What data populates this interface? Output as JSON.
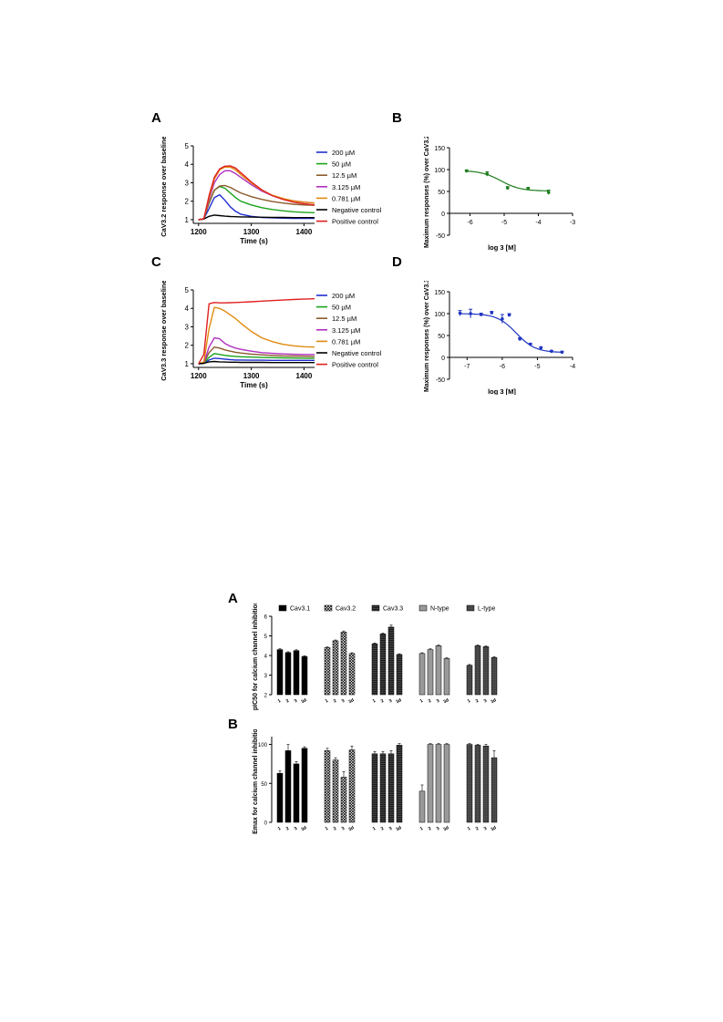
{
  "top": {
    "panel_labels": {
      "A": "A",
      "B": "B",
      "C": "C",
      "D": "D"
    },
    "legend": [
      {
        "label": "200 µM",
        "color": "#1f2fd0"
      },
      {
        "label": "50 µM",
        "color": "#1aa31a"
      },
      {
        "label": "12.5 µM",
        "color": "#8b5a2b"
      },
      {
        "label": "3.125 µM",
        "color": "#b030c0"
      },
      {
        "label": "0.781 µM",
        "color": "#e08a10"
      },
      {
        "label": "Negative control",
        "color": "#000000"
      },
      {
        "label": "Positive control",
        "color": "#e02020"
      }
    ]
  },
  "chart_data": [
    {
      "id": "A",
      "type": "line",
      "xlabel": "Time (s)",
      "ylabel": "CaV3.2 response over baseline",
      "xlim": [
        1190,
        1420
      ],
      "ylim": [
        0.8,
        5
      ],
      "xticks": [
        1200,
        1300,
        1400
      ],
      "yticks": [
        1,
        2,
        3,
        4,
        5
      ],
      "x": [
        1200,
        1210,
        1220,
        1230,
        1240,
        1250,
        1260,
        1270,
        1280,
        1300,
        1320,
        1340,
        1360,
        1380,
        1400,
        1420
      ],
      "series": [
        {
          "name": "200 µM",
          "values": [
            1.0,
            1.05,
            1.6,
            2.2,
            2.35,
            2.05,
            1.7,
            1.45,
            1.3,
            1.18,
            1.12,
            1.1,
            1.08,
            1.07,
            1.07,
            1.07
          ]
        },
        {
          "name": "50 µM",
          "values": [
            1.0,
            1.05,
            1.9,
            2.6,
            2.8,
            2.7,
            2.45,
            2.2,
            2.0,
            1.8,
            1.65,
            1.55,
            1.48,
            1.43,
            1.4,
            1.38
          ]
        },
        {
          "name": "12.5 µM",
          "values": [
            1.0,
            1.05,
            1.9,
            2.6,
            2.82,
            2.85,
            2.75,
            2.6,
            2.45,
            2.25,
            2.1,
            1.98,
            1.9,
            1.84,
            1.8,
            1.78
          ]
        },
        {
          "name": "3.125 µM",
          "values": [
            1.0,
            1.05,
            2.1,
            3.0,
            3.45,
            3.65,
            3.65,
            3.5,
            3.3,
            2.9,
            2.55,
            2.3,
            2.12,
            2.02,
            1.95,
            1.9
          ]
        },
        {
          "name": "0.781 µM",
          "values": [
            1.0,
            1.05,
            2.2,
            3.2,
            3.7,
            3.85,
            3.85,
            3.7,
            3.45,
            3.0,
            2.6,
            2.32,
            2.15,
            2.02,
            1.95,
            1.9
          ]
        },
        {
          "name": "Negative control",
          "values": [
            1.0,
            1.03,
            1.18,
            1.25,
            1.22,
            1.19,
            1.17,
            1.16,
            1.15,
            1.14,
            1.13,
            1.12,
            1.12,
            1.11,
            1.11,
            1.11
          ]
        },
        {
          "name": "Positive control",
          "values": [
            1.0,
            1.05,
            2.3,
            3.3,
            3.75,
            3.9,
            3.92,
            3.8,
            3.55,
            3.05,
            2.62,
            2.3,
            2.1,
            1.95,
            1.86,
            1.8
          ]
        }
      ]
    },
    {
      "id": "B",
      "type": "scatter",
      "xlabel": "log 3 [M]",
      "ylabel": "Maximum responses (%) over CaV3.2",
      "xlim": [
        -6.6,
        -3
      ],
      "ylim": [
        -50,
        150
      ],
      "xticks": [
        -6,
        -5,
        -4,
        -3
      ],
      "yticks": [
        -50,
        0,
        50,
        100,
        150
      ],
      "color": "#1e7d1e",
      "points": [
        {
          "x": -6.1,
          "y": 97,
          "err": 2
        },
        {
          "x": -5.5,
          "y": 90,
          "err": 5
        },
        {
          "x": -4.9,
          "y": 58,
          "err": 3
        },
        {
          "x": -4.3,
          "y": 57,
          "err": 2
        },
        {
          "x": -3.7,
          "y": 48,
          "err": 5
        }
      ],
      "fit": {
        "top": 98,
        "bottom": 51,
        "log_ec50": -5.1,
        "hill": 1.5
      }
    },
    {
      "id": "C",
      "type": "line",
      "xlabel": "Time (s)",
      "ylabel": "CaV3.3 response over baseline",
      "xlim": [
        1190,
        1420
      ],
      "ylim": [
        0.8,
        5
      ],
      "xticks": [
        1200,
        1300,
        1400
      ],
      "yticks": [
        1,
        2,
        3,
        4,
        5
      ],
      "x": [
        1200,
        1210,
        1220,
        1230,
        1240,
        1250,
        1260,
        1270,
        1280,
        1300,
        1320,
        1340,
        1360,
        1380,
        1400,
        1420
      ],
      "series": [
        {
          "name": "200 µM",
          "values": [
            1.0,
            1.02,
            1.2,
            1.3,
            1.28,
            1.25,
            1.22,
            1.2,
            1.2,
            1.19,
            1.19,
            1.18,
            1.18,
            1.18,
            1.18,
            1.18
          ]
        },
        {
          "name": "50 µM",
          "values": [
            1.0,
            1.03,
            1.35,
            1.55,
            1.5,
            1.45,
            1.42,
            1.4,
            1.38,
            1.36,
            1.34,
            1.33,
            1.32,
            1.31,
            1.3,
            1.3
          ]
        },
        {
          "name": "12.5 µM",
          "values": [
            1.0,
            1.05,
            1.6,
            1.9,
            1.85,
            1.75,
            1.68,
            1.62,
            1.58,
            1.52,
            1.48,
            1.45,
            1.43,
            1.42,
            1.41,
            1.4
          ]
        },
        {
          "name": "3.125 µM",
          "values": [
            1.0,
            1.05,
            1.9,
            2.4,
            2.35,
            2.1,
            1.95,
            1.85,
            1.78,
            1.68,
            1.6,
            1.56,
            1.53,
            1.51,
            1.5,
            1.5
          ]
        },
        {
          "name": "0.781 µM",
          "values": [
            1.0,
            1.1,
            2.9,
            4.05,
            4.0,
            3.85,
            3.65,
            3.45,
            3.2,
            2.75,
            2.4,
            2.2,
            2.05,
            1.97,
            1.92,
            1.9
          ]
        },
        {
          "name": "Negative control",
          "values": [
            1.0,
            1.02,
            1.1,
            1.12,
            1.1,
            1.09,
            1.08,
            1.08,
            1.07,
            1.07,
            1.07,
            1.06,
            1.06,
            1.06,
            1.06,
            1.06
          ]
        },
        {
          "name": "Positive control",
          "values": [
            1.0,
            1.5,
            4.25,
            4.32,
            4.3,
            4.3,
            4.31,
            4.32,
            4.33,
            4.36,
            4.39,
            4.42,
            4.45,
            4.48,
            4.5,
            4.52
          ]
        }
      ]
    },
    {
      "id": "D",
      "type": "scatter",
      "xlabel": "log 3 [M]",
      "ylabel": "Maximum responses (%) over CaV3.3",
      "xlim": [
        -7.5,
        -4
      ],
      "ylim": [
        -50,
        150
      ],
      "xticks": [
        -7,
        -6,
        -5,
        -4
      ],
      "yticks": [
        -50,
        0,
        50,
        100,
        150
      ],
      "color": "#1f35c0",
      "points": [
        {
          "x": -7.2,
          "y": 101,
          "err": 6
        },
        {
          "x": -6.9,
          "y": 100,
          "err": 10
        },
        {
          "x": -6.6,
          "y": 98,
          "err": 3
        },
        {
          "x": -6.3,
          "y": 102,
          "err": 3
        },
        {
          "x": -6.0,
          "y": 88,
          "err": 10
        },
        {
          "x": -5.8,
          "y": 97,
          "err": 3
        },
        {
          "x": -5.5,
          "y": 42,
          "err": 3
        },
        {
          "x": -5.2,
          "y": 30,
          "err": 2
        },
        {
          "x": -4.9,
          "y": 22,
          "err": 2
        },
        {
          "x": -4.6,
          "y": 14,
          "err": 2
        },
        {
          "x": -4.3,
          "y": 12,
          "err": 2
        }
      ],
      "fit": {
        "top": 100,
        "bottom": 11,
        "log_ec50": -5.6,
        "hill": 1.6
      }
    },
    {
      "id": "A2",
      "type": "bar",
      "panel_label": "A",
      "ylabel": "pIC50 for calcium channel inhibition",
      "ylim": [
        2,
        6
      ],
      "yticks": [
        2,
        3,
        4,
        5,
        6
      ],
      "groups": [
        "Cav3.1",
        "Cav3.2",
        "Cav3.3",
        "N-type",
        "L-type"
      ],
      "compounds": [
        "1",
        "2",
        "3",
        "3d"
      ],
      "values": [
        [
          4.3,
          4.15,
          4.25,
          3.95
        ],
        [
          4.4,
          4.75,
          5.2,
          4.1
        ],
        [
          4.6,
          5.1,
          5.45,
          4.05
        ],
        [
          4.1,
          4.3,
          4.5,
          3.85
        ],
        [
          3.5,
          4.5,
          4.45,
          3.9
        ]
      ],
      "errors": [
        [
          0.04,
          0.04,
          0.04,
          0.04
        ],
        [
          0.04,
          0.04,
          0.05,
          0.04
        ],
        [
          0.04,
          0.05,
          0.1,
          0.04
        ],
        [
          0.04,
          0.04,
          0.04,
          0.04
        ],
        [
          0.04,
          0.04,
          0.04,
          0.04
        ]
      ]
    },
    {
      "id": "B2",
      "type": "bar",
      "panel_label": "B",
      "ylabel": "Emax for calcium channel inhibition",
      "ylim": [
        0,
        110
      ],
      "yticks": [
        0,
        50,
        100
      ],
      "groups": [
        "Cav3.1",
        "Cav3.2",
        "Cav3.3",
        "N-type",
        "L-type"
      ],
      "compounds": [
        "1",
        "2",
        "3",
        "3d"
      ],
      "values": [
        [
          63,
          92,
          75,
          95
        ],
        [
          92,
          80,
          58,
          93
        ],
        [
          88,
          88,
          88,
          99
        ],
        [
          40,
          100,
          100,
          100
        ],
        [
          100,
          99,
          98,
          83
        ]
      ],
      "errors": [
        [
          3,
          8,
          3,
          2
        ],
        [
          3,
          3,
          7,
          5
        ],
        [
          3,
          3,
          4,
          2
        ],
        [
          8,
          1,
          1,
          1
        ],
        [
          1,
          1,
          2,
          9
        ]
      ]
    }
  ]
}
